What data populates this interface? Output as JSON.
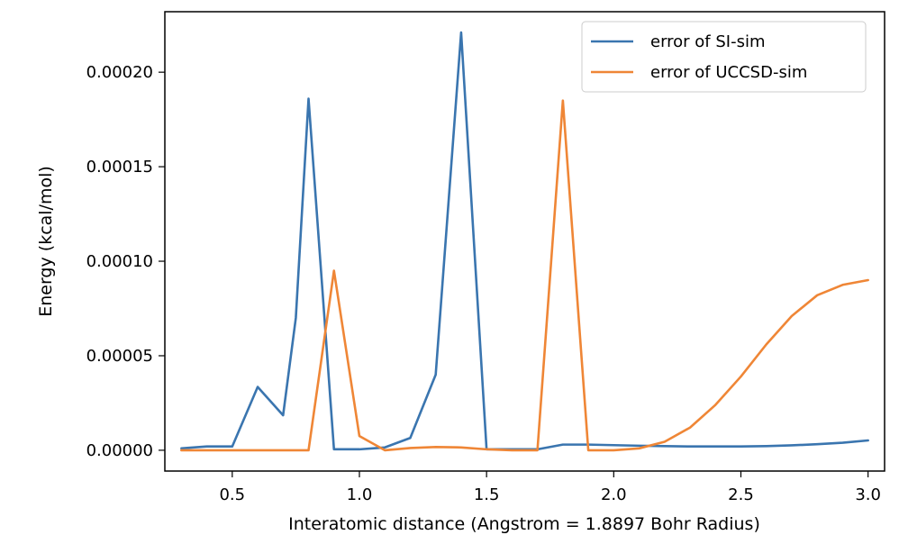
{
  "chart_data": {
    "type": "line",
    "xlabel": "Interatomic distance (Angstrom = 1.8897 Bohr Radius)",
    "ylabel": "Energy (kcal/mol)",
    "xlim": [
      0.235,
      3.065
    ],
    "ylim": [
      -1.1e-05,
      0.000232
    ],
    "xticks": [
      0.5,
      1.0,
      1.5,
      2.0,
      2.5,
      3.0
    ],
    "xtick_labels": [
      "0.5",
      "1.0",
      "1.5",
      "2.0",
      "2.5",
      "3.0"
    ],
    "yticks": [
      0.0,
      5e-05,
      0.0001,
      0.00015,
      0.0002
    ],
    "ytick_labels": [
      "0.00000",
      "0.00005",
      "0.00010",
      "0.00015",
      "0.00020"
    ],
    "grid": false,
    "legend": {
      "position": "top-right"
    },
    "series": [
      {
        "name": "error of SI-sim",
        "color": "#3a75af",
        "x": [
          0.3,
          0.4,
          0.5,
          0.6,
          0.7,
          0.75,
          0.8,
          0.9,
          1.0,
          1.1,
          1.2,
          1.3,
          1.4,
          1.5,
          1.6,
          1.7,
          1.8,
          1.9,
          2.0,
          2.1,
          2.2,
          2.3,
          2.4,
          2.5,
          2.6,
          2.7,
          2.8,
          2.9,
          3.0
        ],
        "values": [
          1e-06,
          2e-06,
          2e-06,
          3.35e-05,
          1.85e-05,
          7e-05,
          0.000186,
          5e-07,
          5e-07,
          1.5e-06,
          6.5e-06,
          4e-05,
          0.000221,
          5e-07,
          5e-07,
          5e-07,
          3e-06,
          3e-06,
          2.7e-06,
          2.4e-06,
          2.2e-06,
          2e-06,
          2e-06,
          2e-06,
          2.2e-06,
          2.6e-06,
          3.2e-06,
          4e-06,
          5.2e-06
        ]
      },
      {
        "name": "error of UCCSD-sim",
        "color": "#ef8636",
        "x": [
          0.3,
          0.4,
          0.5,
          0.6,
          0.7,
          0.8,
          0.9,
          1.0,
          1.1,
          1.2,
          1.3,
          1.4,
          1.5,
          1.6,
          1.7,
          1.8,
          1.9,
          2.0,
          2.1,
          2.2,
          2.3,
          2.4,
          2.5,
          2.6,
          2.7,
          2.8,
          2.9,
          3.0
        ],
        "values": [
          0.0,
          0.0,
          0.0,
          0.0,
          0.0,
          0.0,
          9.5e-05,
          7.5e-06,
          0.0,
          1.2e-06,
          1.7e-06,
          1.5e-06,
          5e-07,
          0.0,
          0.0,
          0.000185,
          0.0,
          0.0,
          1e-06,
          4.5e-06,
          1.2e-05,
          2.4e-05,
          3.9e-05,
          5.6e-05,
          7.1e-05,
          8.2e-05,
          8.75e-05,
          9e-05
        ]
      }
    ]
  }
}
